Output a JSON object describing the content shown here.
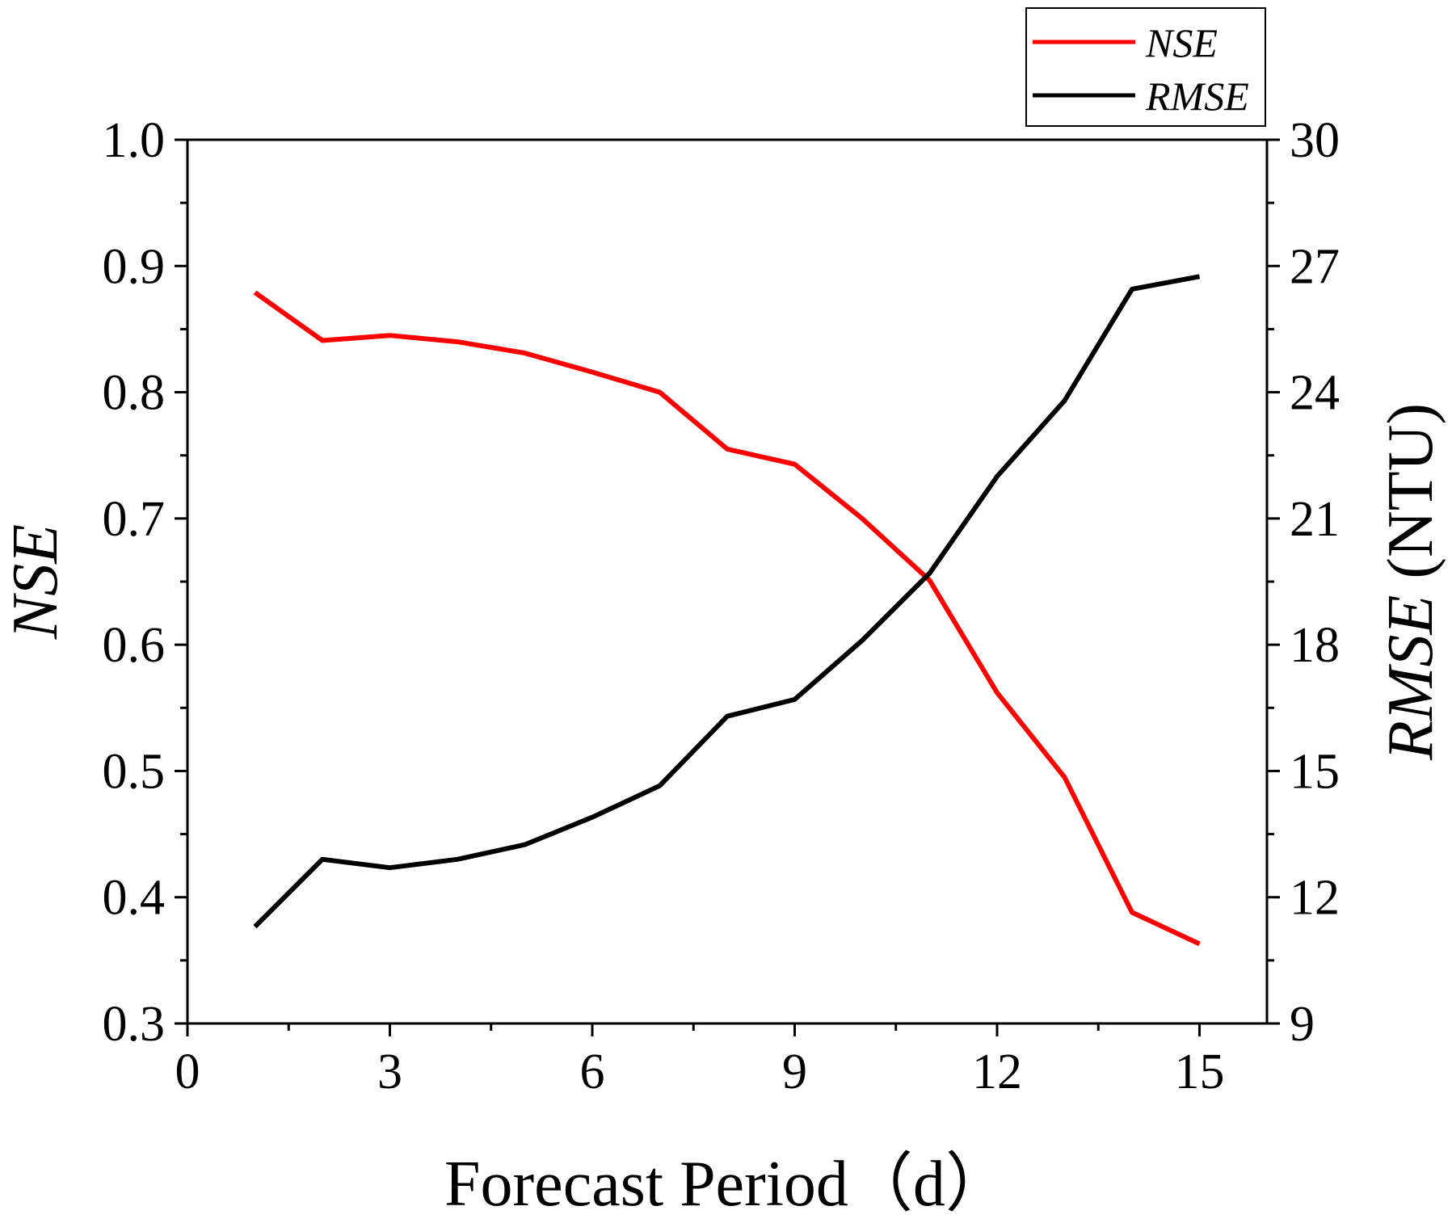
{
  "chart_data": {
    "type": "line",
    "title": "",
    "x": [
      1,
      2,
      3,
      4,
      5,
      6,
      7,
      8,
      9,
      10,
      11,
      12,
      13,
      14,
      15
    ],
    "xlabel": "Forecast Period（d）",
    "xlim": [
      0,
      16
    ],
    "xticks": [
      0,
      3,
      6,
      9,
      12,
      15
    ],
    "xticks_minor": [
      1.5,
      4.5,
      7.5,
      10.5,
      13.5
    ],
    "y_left": {
      "label": "NSE",
      "lim": [
        0.3,
        1.0
      ],
      "ticks": [
        "0.3",
        "0.4",
        "0.5",
        "0.6",
        "0.7",
        "0.8",
        "0.9",
        "1.0"
      ],
      "tick_values": [
        0.3,
        0.4,
        0.5,
        0.6,
        0.7,
        0.8,
        0.9,
        1.0
      ]
    },
    "y_right": {
      "label_italic": "RMSE",
      "label_rest": " (NTU)",
      "lim": [
        9,
        30
      ],
      "ticks": [
        "9",
        "12",
        "15",
        "18",
        "21",
        "24",
        "27",
        "30"
      ],
      "tick_values": [
        9,
        12,
        15,
        18,
        21,
        24,
        27,
        30
      ]
    },
    "series": [
      {
        "name": "NSE",
        "axis": "left",
        "color": "#ff0000",
        "values": [
          0.879,
          0.841,
          0.845,
          0.84,
          0.831,
          0.816,
          0.8,
          0.755,
          0.743,
          0.7,
          0.651,
          0.562,
          0.495,
          0.388,
          0.363
        ]
      },
      {
        "name": "RMSE",
        "axis": "right",
        "color": "#000000",
        "values": [
          11.3,
          12.9,
          12.7,
          12.9,
          13.25,
          13.9,
          14.65,
          16.3,
          16.7,
          18.1,
          19.7,
          22.0,
          23.8,
          26.45,
          26.75
        ]
      }
    ],
    "legend": {
      "position": "top-right",
      "entries": [
        "NSE",
        "RMSE"
      ]
    }
  }
}
